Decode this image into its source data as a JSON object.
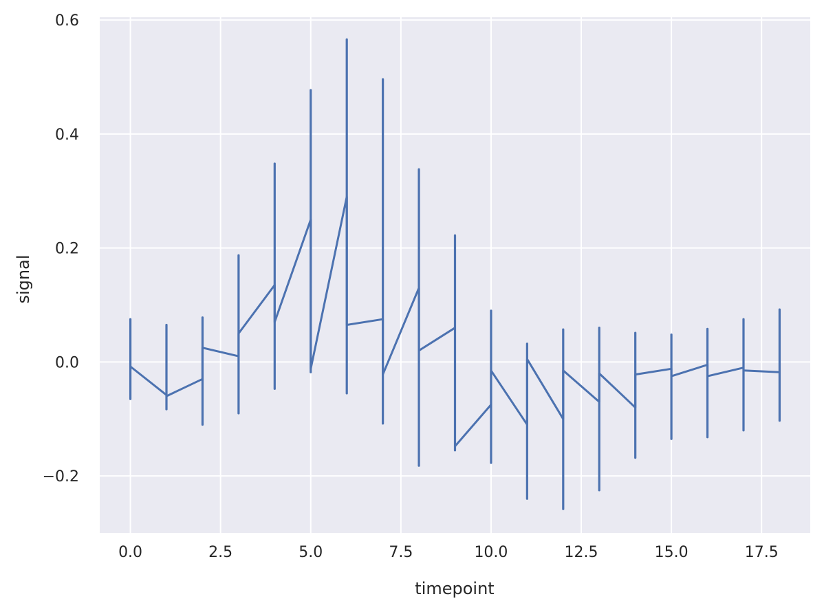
{
  "chart_data": {
    "type": "line",
    "xlabel": "timepoint",
    "ylabel": "signal",
    "xlim": [
      -0.85,
      18.85
    ],
    "ylim": [
      -0.3,
      0.605
    ],
    "xticks": [
      0.0,
      2.5,
      5.0,
      7.5,
      10.0,
      12.5,
      15.0,
      17.5
    ],
    "xtick_labels": [
      "0.0",
      "2.5",
      "5.0",
      "7.5",
      "10.0",
      "12.5",
      "15.0",
      "17.5"
    ],
    "yticks": [
      -0.2,
      0.0,
      0.2,
      0.4,
      0.6
    ],
    "ytick_labels": [
      "−0.2",
      "0.0",
      "0.2",
      "0.4",
      "0.6"
    ],
    "grid": true,
    "background": "#eaeaf2",
    "grid_color": "#ffffff",
    "line_color": "#4c72b0",
    "series": [
      {
        "x": [
          0,
          0,
          1,
          1,
          2,
          2,
          3,
          3,
          4,
          4,
          5,
          5,
          6,
          6,
          7,
          7,
          8,
          8,
          9,
          9,
          10,
          10,
          11,
          11,
          12,
          12,
          13,
          13,
          14,
          14,
          15,
          15,
          16,
          16,
          17,
          17,
          18,
          18
        ],
        "y": [
          -0.015,
          -0.008,
          -0.058,
          -0.06,
          -0.03,
          0.025,
          0.01,
          0.05,
          0.135,
          0.07,
          0.25,
          -0.012,
          0.29,
          0.065,
          0.075,
          -0.022,
          0.13,
          0.02,
          0.06,
          -0.148,
          -0.075,
          -0.015,
          -0.11,
          0.005,
          -0.1,
          -0.015,
          -0.07,
          -0.02,
          -0.08,
          -0.022,
          -0.012,
          -0.025,
          -0.005,
          -0.025,
          -0.01,
          -0.015,
          -0.018,
          -0.018
        ],
        "errorbars": [
          {
            "x": 0,
            "low": -0.065,
            "high": 0.075
          },
          {
            "x": 1,
            "low": -0.083,
            "high": 0.065
          },
          {
            "x": 2,
            "low": -0.11,
            "high": 0.078
          },
          {
            "x": 3,
            "low": -0.09,
            "high": 0.187
          },
          {
            "x": 4,
            "low": -0.047,
            "high": 0.348
          },
          {
            "x": 5,
            "low": -0.018,
            "high": 0.477
          },
          {
            "x": 6,
            "low": -0.055,
            "high": 0.566
          },
          {
            "x": 7,
            "low": -0.108,
            "high": 0.496
          },
          {
            "x": 8,
            "low": -0.182,
            "high": 0.338
          },
          {
            "x": 9,
            "low": -0.155,
            "high": 0.222
          },
          {
            "x": 10,
            "low": -0.177,
            "high": 0.09
          },
          {
            "x": 11,
            "low": -0.24,
            "high": 0.032
          },
          {
            "x": 12,
            "low": -0.258,
            "high": 0.057
          },
          {
            "x": 13,
            "low": -0.225,
            "high": 0.06
          },
          {
            "x": 14,
            "low": -0.168,
            "high": 0.051
          },
          {
            "x": 15,
            "low": -0.135,
            "high": 0.048
          },
          {
            "x": 16,
            "low": -0.132,
            "high": 0.058
          },
          {
            "x": 17,
            "low": -0.12,
            "high": 0.075
          },
          {
            "x": 18,
            "low": -0.103,
            "high": 0.092
          }
        ]
      }
    ]
  }
}
